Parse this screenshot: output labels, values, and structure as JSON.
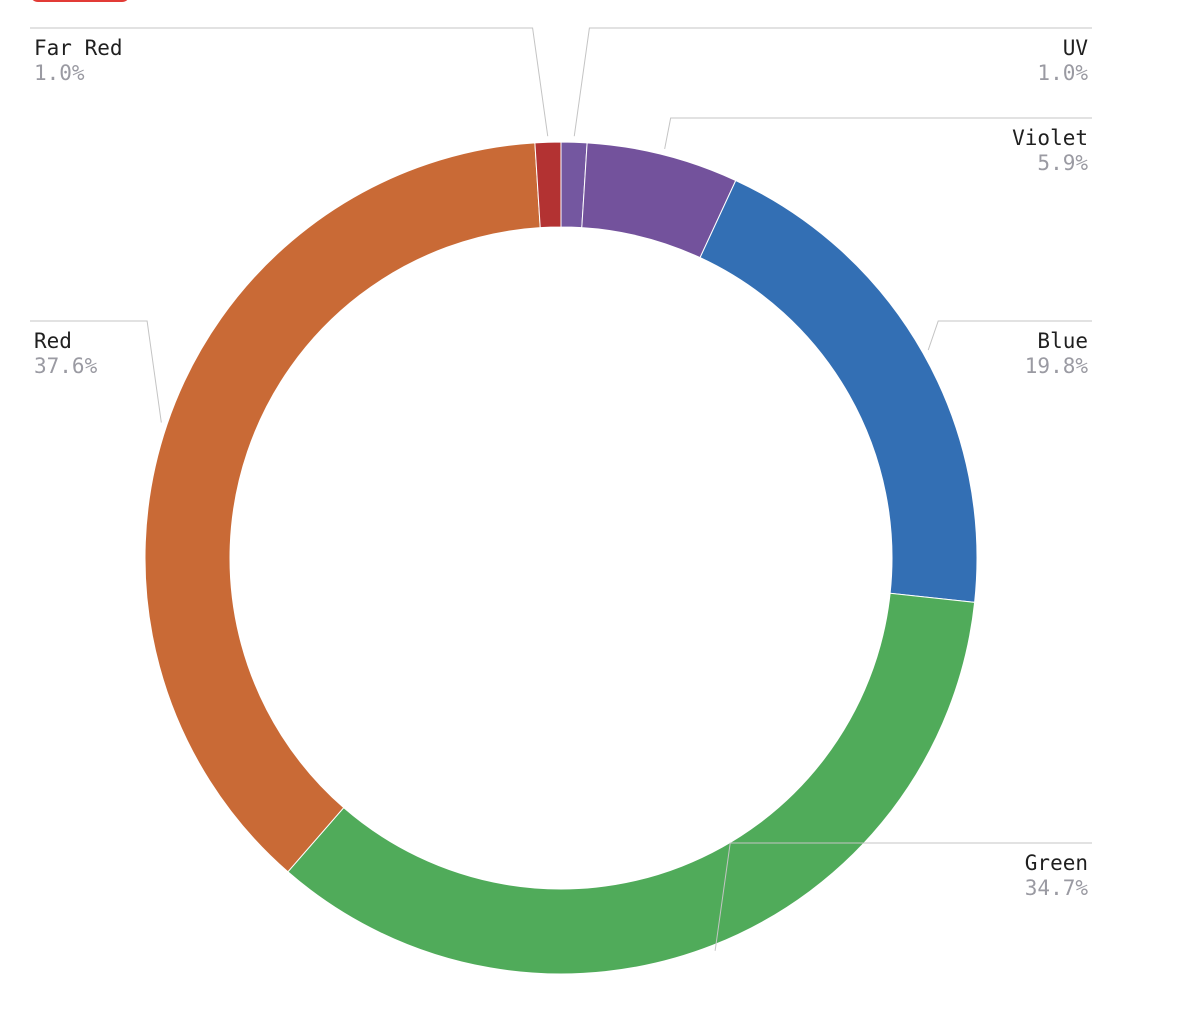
{
  "chart_data": {
    "type": "pie",
    "series": [
      {
        "name": "UV",
        "value": 1.0,
        "label": "1.0%",
        "color": "#7457a0"
      },
      {
        "name": "Violet",
        "value": 5.9,
        "label": "5.9%",
        "color": "#73529c"
      },
      {
        "name": "Blue",
        "value": 19.8,
        "label": "19.8%",
        "color": "#336fb4"
      },
      {
        "name": "Green",
        "value": 34.7,
        "label": "34.7%",
        "color": "#50ab5a"
      },
      {
        "name": "Red",
        "value": 37.6,
        "label": "37.6%",
        "color": "#c96a36"
      },
      {
        "name": "Far Red",
        "value": 1.0,
        "label": "1.0%",
        "color": "#b33232"
      }
    ],
    "style": "donut",
    "legend": "callout-labels"
  }
}
